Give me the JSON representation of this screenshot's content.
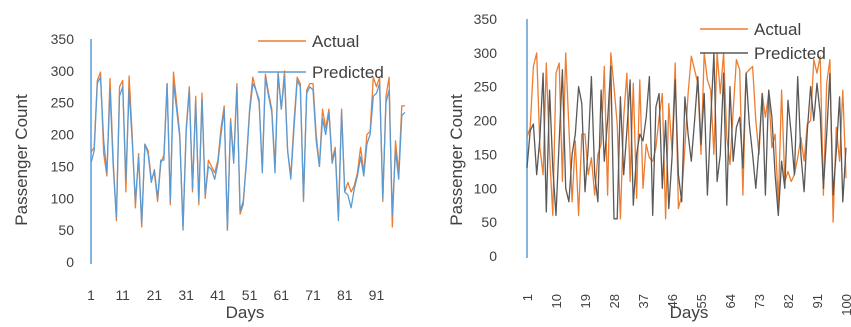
{
  "colors": {
    "actual": "#ED7D31",
    "predicted_left": "#5B9BD5",
    "predicted_right": "#595959",
    "axis": "#5B9BD5",
    "text": "#404040"
  },
  "chart_data": [
    {
      "type": "line",
      "xlabel": "Days",
      "ylabel": "Passenger Count",
      "ylim": [
        0,
        350
      ],
      "yticks": [
        "0",
        "50",
        "100",
        "150",
        "200",
        "250",
        "300",
        "350"
      ],
      "xticks": [
        "1",
        "11",
        "21",
        "31",
        "41",
        "51",
        "61",
        "71",
        "81",
        "91"
      ],
      "legend": "top-right",
      "series": [
        {
          "name": "Actual",
          "values": [
            172,
            180,
            285,
            298,
            170,
            135,
            288,
            160,
            65,
            275,
            285,
            110,
            292,
            200,
            85,
            170,
            55,
            185,
            175,
            130,
            140,
            95,
            155,
            168,
            280,
            90,
            298,
            250,
            200,
            55,
            210,
            275,
            110,
            260,
            90,
            265,
            100,
            160,
            150,
            140,
            160,
            210,
            245,
            50,
            225,
            160,
            280,
            75,
            90,
            160,
            240,
            290,
            270,
            250,
            145,
            295,
            265,
            240,
            150,
            298,
            240,
            300,
            175,
            135,
            220,
            290,
            280,
            95,
            270,
            280,
            280,
            200,
            150,
            240,
            210,
            240,
            160,
            180,
            70,
            240,
            110,
            125,
            110,
            120,
            140,
            180,
            140,
            200,
            205,
            290,
            275,
            290,
            95,
            260,
            290,
            55,
            190,
            140,
            245,
            245
          ]
        },
        {
          "name": "Predicted",
          "values": [
            155,
            175,
            280,
            290,
            190,
            140,
            270,
            150,
            70,
            260,
            275,
            130,
            270,
            190,
            95,
            165,
            60,
            185,
            170,
            125,
            145,
            100,
            160,
            160,
            280,
            95,
            280,
            240,
            195,
            50,
            205,
            270,
            115,
            250,
            95,
            255,
            105,
            150,
            145,
            130,
            155,
            200,
            240,
            50,
            220,
            155,
            275,
            80,
            95,
            155,
            235,
            280,
            270,
            255,
            140,
            290,
            260,
            235,
            140,
            295,
            240,
            290,
            175,
            130,
            210,
            285,
            275,
            100,
            265,
            275,
            270,
            190,
            150,
            225,
            200,
            235,
            155,
            175,
            65,
            235,
            110,
            105,
            85,
            115,
            135,
            165,
            135,
            185,
            200,
            260,
            265,
            280,
            100,
            250,
            270,
            75,
            175,
            130,
            230,
            235
          ]
        }
      ]
    },
    {
      "type": "line",
      "xlabel": "Days",
      "ylabel": "Passenger Count",
      "ylim": [
        0,
        350
      ],
      "yticks": [
        "0",
        "50",
        "100",
        "150",
        "200",
        "250",
        "300",
        "350"
      ],
      "xticks": [
        "1",
        "10",
        "19",
        "28",
        "37",
        "46",
        "55",
        "64",
        "73",
        "82",
        "91",
        "100"
      ],
      "legend": "top-right",
      "series": [
        {
          "name": "Actual",
          "values": [
            175,
            190,
            280,
            300,
            160,
            120,
            285,
            150,
            60,
            270,
            285,
            110,
            300,
            190,
            80,
            170,
            60,
            180,
            180,
            120,
            145,
            90,
            150,
            165,
            280,
            90,
            300,
            250,
            195,
            55,
            205,
            270,
            110,
            255,
            85,
            260,
            100,
            165,
            145,
            140,
            160,
            205,
            240,
            55,
            225,
            155,
            285,
            70,
            90,
            160,
            240,
            295,
            275,
            255,
            150,
            300,
            260,
            245,
            150,
            300,
            240,
            300,
            175,
            135,
            215,
            290,
            275,
            90,
            270,
            275,
            280,
            200,
            150,
            240,
            205,
            240,
            160,
            180,
            75,
            245,
            110,
            125,
            110,
            120,
            145,
            175,
            140,
            195,
            200,
            290,
            270,
            295,
            90,
            255,
            290,
            50,
            190,
            140,
            245,
            115
          ]
        },
        {
          "name": "Predicted",
          "values": [
            130,
            185,
            195,
            120,
            175,
            270,
            65,
            245,
            130,
            60,
            170,
            275,
            100,
            80,
            150,
            180,
            250,
            225,
            95,
            160,
            265,
            120,
            80,
            245,
            140,
            200,
            280,
            55,
            55,
            235,
            120,
            185,
            260,
            75,
            150,
            180,
            170,
            205,
            265,
            60,
            220,
            240,
            100,
            200,
            70,
            145,
            260,
            120,
            80,
            235,
            180,
            140,
            200,
            265,
            165,
            240,
            90,
            200,
            300,
            110,
            150,
            270,
            75,
            250,
            140,
            190,
            205,
            130,
            270,
            195,
            150,
            100,
            160,
            240,
            90,
            245,
            205,
            120,
            60,
            140,
            100,
            230,
            180,
            120,
            265,
            150,
            95,
            185,
            250,
            200,
            255,
            210,
            100,
            180,
            270,
            90,
            155,
            235,
            80,
            160
          ]
        }
      ]
    }
  ]
}
